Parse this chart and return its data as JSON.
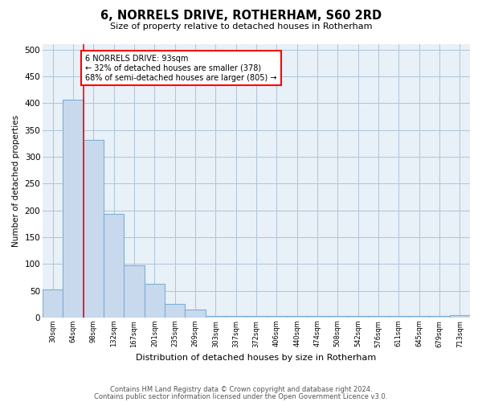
{
  "title": "6, NORRELS DRIVE, ROTHERHAM, S60 2RD",
  "subtitle": "Size of property relative to detached houses in Rotherham",
  "xlabel": "Distribution of detached houses by size in Rotherham",
  "ylabel": "Number of detached properties",
  "bar_labels": [
    "30sqm",
    "64sqm",
    "98sqm",
    "132sqm",
    "167sqm",
    "201sqm",
    "235sqm",
    "269sqm",
    "303sqm",
    "337sqm",
    "372sqm",
    "406sqm",
    "440sqm",
    "474sqm",
    "508sqm",
    "542sqm",
    "576sqm",
    "611sqm",
    "645sqm",
    "679sqm",
    "713sqm"
  ],
  "bar_values": [
    53,
    407,
    332,
    194,
    97,
    63,
    25,
    15,
    3,
    3,
    3,
    3,
    3,
    3,
    3,
    3,
    3,
    3,
    3,
    3,
    5
  ],
  "bar_color_fill": "#c8d9ee",
  "bar_color_edge": "#7bafd4",
  "plot_bg_color": "#e8f0f8",
  "property_line_label": "6 NORRELS DRIVE: 93sqm",
  "annotation_line1": "← 32% of detached houses are smaller (378)",
  "annotation_line2": "68% of semi-detached houses are larger (805) →",
  "ylim": [
    0,
    510
  ],
  "yticks": [
    0,
    50,
    100,
    150,
    200,
    250,
    300,
    350,
    400,
    450,
    500
  ],
  "footer1": "Contains HM Land Registry data © Crown copyright and database right 2024.",
  "footer2": "Contains public sector information licensed under the Open Government Licence v3.0.",
  "background_color": "#ffffff",
  "grid_color": "#b0c4d8"
}
